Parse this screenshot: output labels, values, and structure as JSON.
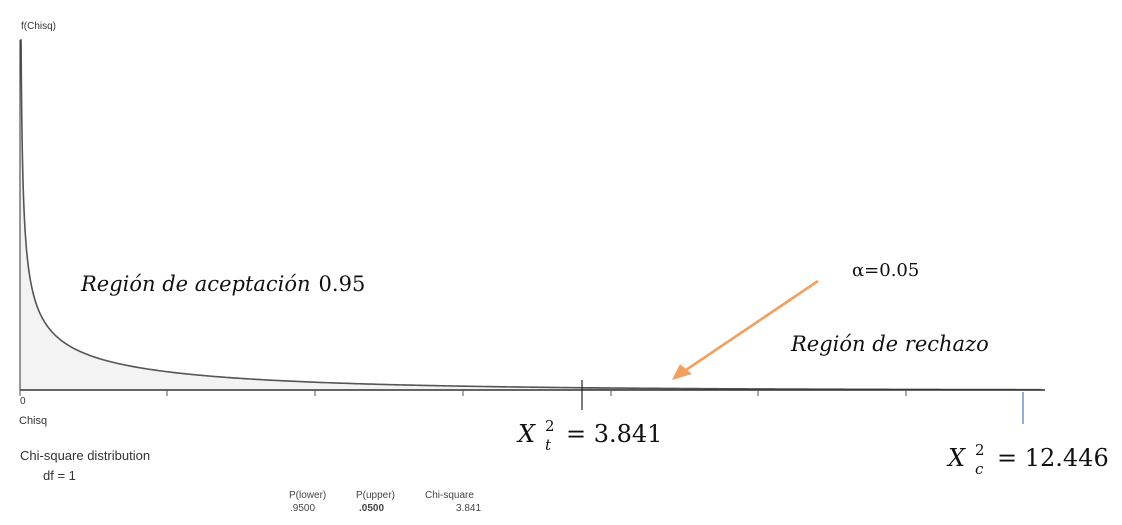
{
  "chart_data": {
    "type": "area",
    "distribution": "Chi-square",
    "df": 1,
    "y_axis_label": "f(Chisq)",
    "x_axis_label": "Chisq",
    "x_tick_label_zero": "0",
    "caption_line1": "Chi-square distribution",
    "caption_line2": "df = 1",
    "critical_value": 3.841,
    "calculated_value": 12.446,
    "alpha": 0.05,
    "acceptance_probability": 0.95,
    "annotations": {
      "acceptance_text": "Región de aceptación",
      "acceptance_value": "0.95",
      "alpha_text": "α=0.05",
      "rejection_text": "Región de rechazo",
      "xt_symbol": "X",
      "xt_sup": "2",
      "xt_sub": "t",
      "xt_eq": "= 3.841",
      "xc_symbol": "X",
      "xc_sup": "2",
      "xc_sub": "c",
      "xc_eq": "= 12.446"
    },
    "stats_table": {
      "headers": [
        "P(lower)",
        "P(upper)",
        "Chi-square"
      ],
      "values": [
        ".9500",
        ".0500",
        "3.841"
      ]
    }
  },
  "colors": {
    "curve": "#555555",
    "fill": "#f2f2f2",
    "axis": "#333333",
    "arrow": "#f0a060",
    "xc_marker": "#4a7ab5"
  }
}
